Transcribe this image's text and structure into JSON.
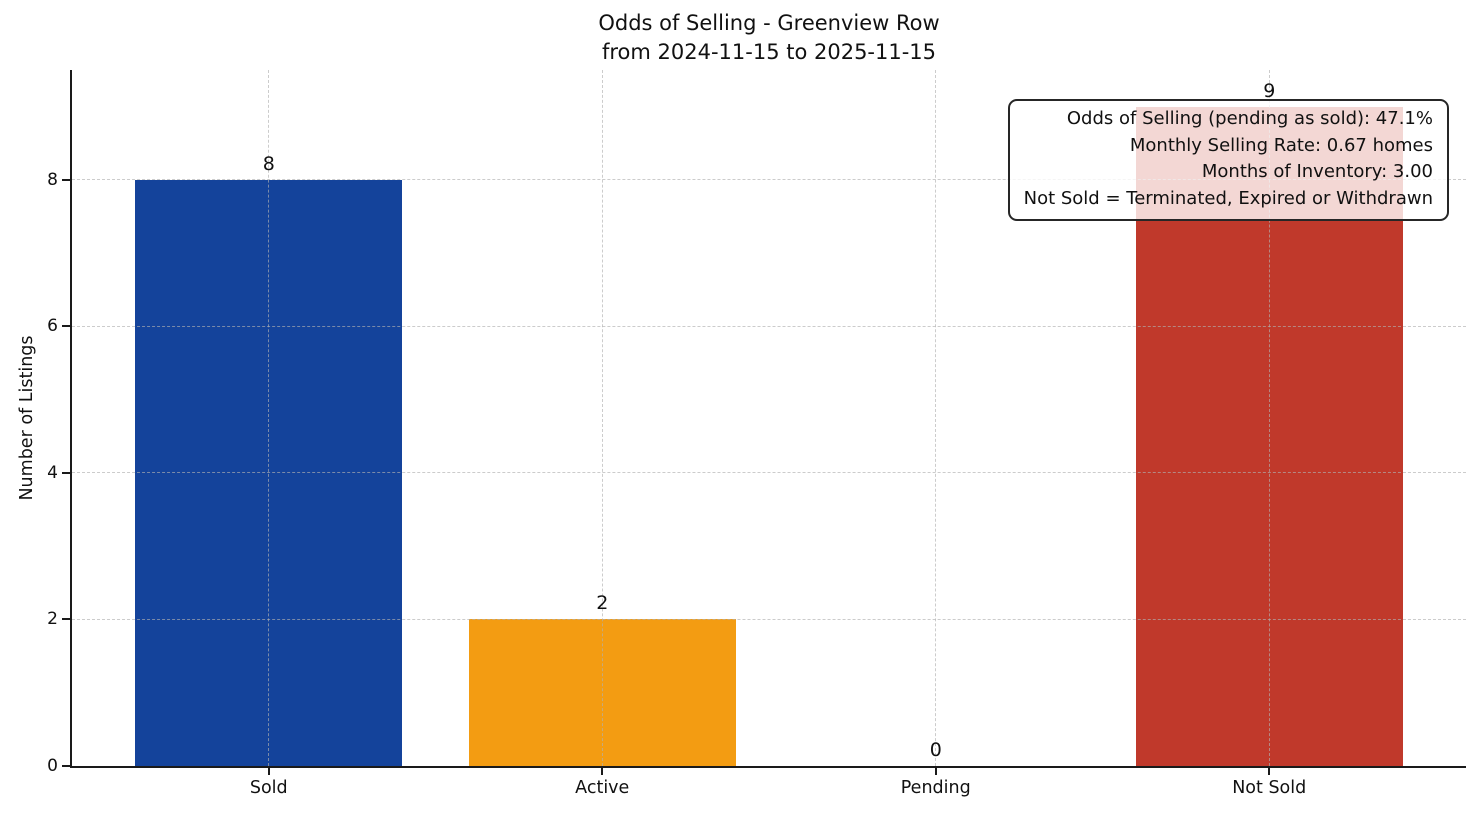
{
  "chart_data": {
    "type": "bar",
    "title": "Odds of Selling - Greenview Row",
    "subtitle": "from 2024-11-15 to 2025-11-15",
    "ylabel": "Number of Listings",
    "xlabel": "",
    "categories": [
      "Sold",
      "Active",
      "Pending",
      "Not Sold"
    ],
    "values": [
      8,
      2,
      0,
      9
    ],
    "bar_colors": [
      "#14439b",
      "#f39c12",
      null,
      "#c0392b"
    ],
    "yticks": [
      0,
      2,
      4,
      6,
      8
    ],
    "ylim": [
      0,
      9.5
    ],
    "xlim": [
      -0.59,
      3.59
    ],
    "bar_width": 0.8,
    "grid": true,
    "grid_style": "dashed",
    "legend": "none",
    "annotation": {
      "lines": [
        "Odds of Selling (pending as sold): 47.1%",
        "Monthly Selling Rate: 0.67 homes",
        "Months of Inventory: 3.00",
        "Not Sold = Terminated, Expired or Withdrawn"
      ]
    },
    "colors": {
      "axis": "#1a1a1a",
      "grid": "#b0b0b0",
      "text": "#111111",
      "annotation_bg": "rgba(255,255,255,0.8)"
    }
  }
}
